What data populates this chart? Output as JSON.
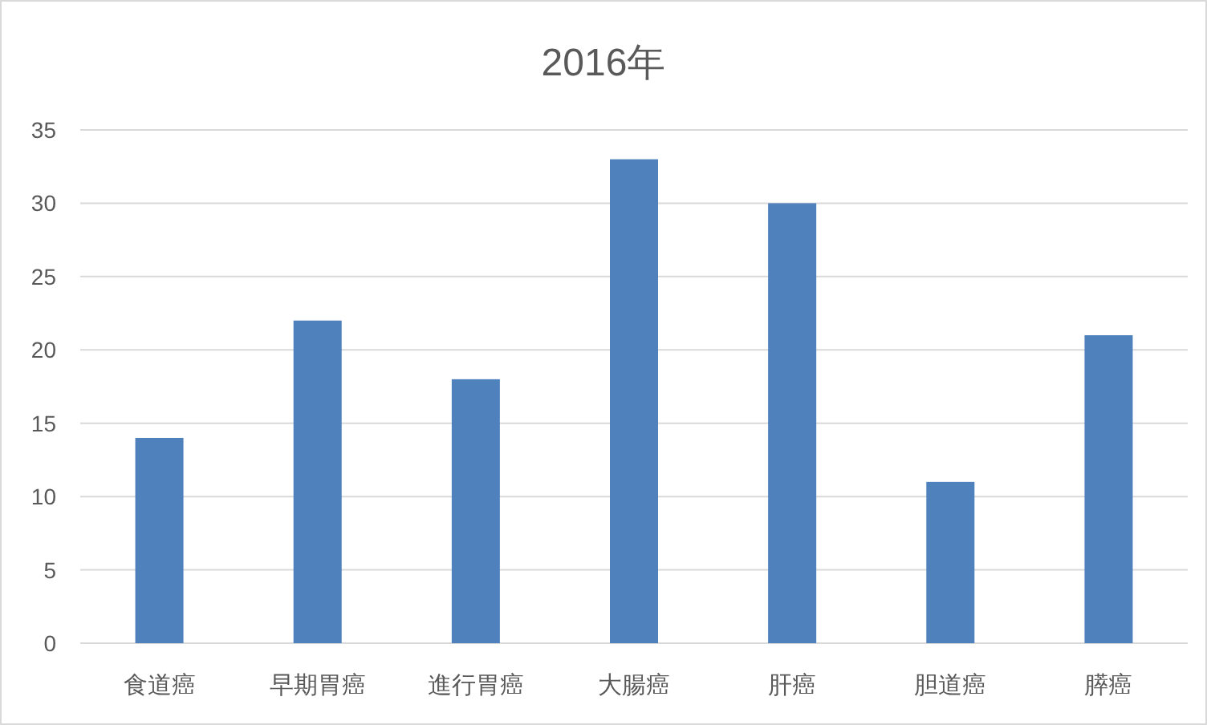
{
  "chart_data": {
    "type": "bar",
    "title": "2016年",
    "categories": [
      "食道癌",
      "早期胃癌",
      "進行胃癌",
      "大腸癌",
      "肝癌",
      "胆道癌",
      "膵癌"
    ],
    "values": [
      14,
      22,
      18,
      33,
      30,
      11,
      21
    ],
    "color": "#4f81bd",
    "ylim": [
      0,
      35
    ],
    "yticks": [
      0,
      5,
      10,
      15,
      20,
      25,
      30,
      35
    ],
    "grid": "y"
  }
}
